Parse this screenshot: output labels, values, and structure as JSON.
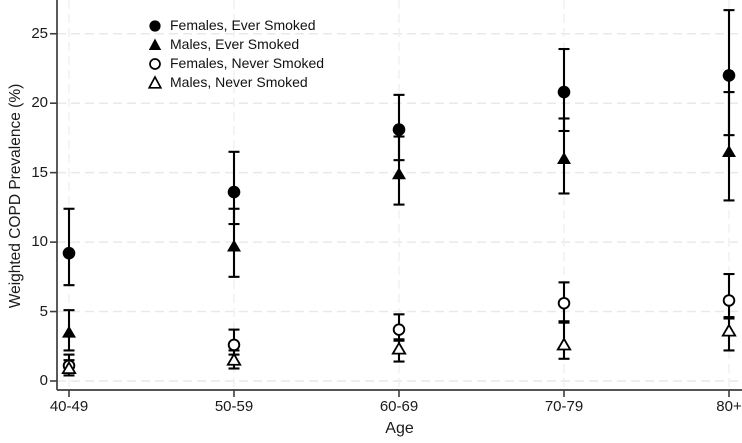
{
  "chart_data": {
    "type": "scatter",
    "title": "",
    "xlabel": "Age",
    "ylabel": "Weighted COPD Prevalence (%)",
    "categories": [
      "40-49",
      "50-59",
      "60-69",
      "70-79",
      "80+"
    ],
    "yticks": [
      0,
      5,
      10,
      15,
      20,
      25
    ],
    "ylim": [
      0,
      27.5
    ],
    "grid": true,
    "legend_position": "top-left-inside",
    "error_bars": "95% CI caps",
    "series": [
      {
        "name": "Females, Ever Smoked",
        "marker": "filled-circle",
        "values": [
          9.2,
          13.6,
          18.1,
          20.8,
          22.0
        ],
        "ci_low": [
          6.9,
          11.3,
          15.9,
          18.0,
          17.7
        ],
        "ci_high": [
          12.4,
          16.5,
          20.6,
          23.9,
          26.7
        ]
      },
      {
        "name": "Males, Ever Smoked",
        "marker": "filled-triangle",
        "values": [
          3.5,
          9.7,
          14.9,
          16.0,
          16.5
        ],
        "ci_low": [
          2.2,
          7.5,
          12.7,
          13.5,
          13.0
        ],
        "ci_high": [
          5.1,
          12.4,
          17.6,
          18.9,
          20.8
        ]
      },
      {
        "name": "Females, Never Smoked",
        "marker": "open-circle",
        "values": [
          1.1,
          2.6,
          3.7,
          5.6,
          5.8
        ],
        "ci_low": [
          0.6,
          1.9,
          3.0,
          4.3,
          4.5
        ],
        "ci_high": [
          1.9,
          3.7,
          4.8,
          7.1,
          7.7
        ]
      },
      {
        "name": "Males, Never Smoked",
        "marker": "open-triangle",
        "values": [
          0.9,
          1.5,
          2.3,
          2.6,
          3.6
        ],
        "ci_low": [
          0.4,
          0.9,
          1.4,
          1.6,
          2.2
        ],
        "ci_high": [
          1.5,
          2.2,
          2.9,
          4.2,
          4.6
        ]
      }
    ],
    "style": {
      "marker_color": "#000000",
      "grid_color": "#e9e9e9",
      "vgrid_color": "#efefef",
      "axis_color": "#3d3d3d",
      "text_color": "#1a1a1a"
    }
  }
}
